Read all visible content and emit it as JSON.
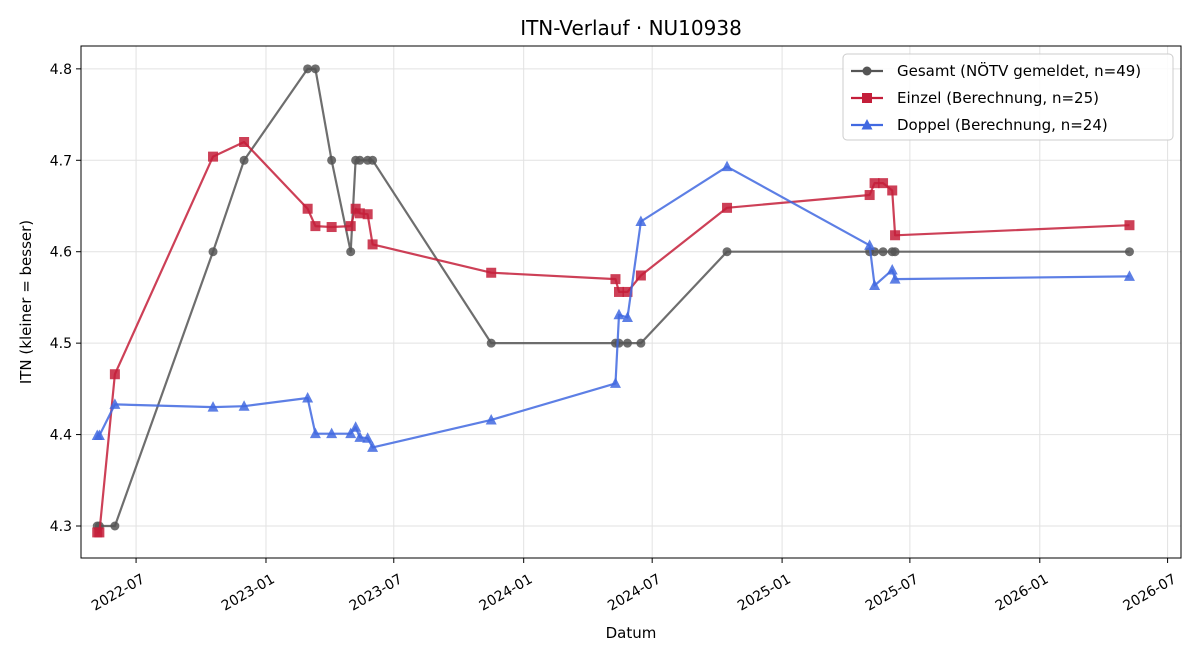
{
  "chart_data": {
    "type": "line",
    "title": "ITN-Verlauf · NU10938",
    "xlabel": "Datum",
    "ylabel": "ITN  (kleiner = besser)",
    "x_type": "date",
    "xlim": [
      "2022-04-14",
      "2026-07-20"
    ],
    "ylim": [
      4.265,
      4.825
    ],
    "x_ticks": [
      "2022-07-01",
      "2023-01-01",
      "2023-07-01",
      "2024-01-01",
      "2024-07-01",
      "2025-01-01",
      "2025-07-01",
      "2026-01-01",
      "2026-07-01"
    ],
    "x_tick_labels": [
      "2022-07",
      "2023-01",
      "2023-07",
      "2024-01",
      "2024-07",
      "2025-01",
      "2025-07",
      "2026-01",
      "2026-07"
    ],
    "y_ticks": [
      4.3,
      4.4,
      4.5,
      4.6,
      4.7,
      4.8
    ],
    "y_tick_labels": [
      "4.3",
      "4.4",
      "4.5",
      "4.6",
      "4.7",
      "4.8"
    ],
    "grid": true,
    "legend_position": "top-right",
    "series": [
      {
        "name": "Gesamt (NÖTV gemeldet, n=49)",
        "color": "#555555",
        "marker": "circle",
        "points": [
          [
            "2022-05-07",
            4.3
          ],
          [
            "2022-05-10",
            4.3
          ],
          [
            "2022-06-01",
            4.3
          ],
          [
            "2022-10-18",
            4.6
          ],
          [
            "2022-12-01",
            4.7
          ],
          [
            "2023-03-01",
            4.8
          ],
          [
            "2023-03-12",
            4.8
          ],
          [
            "2023-04-04",
            4.7
          ],
          [
            "2023-05-01",
            4.6
          ],
          [
            "2023-05-08",
            4.7
          ],
          [
            "2023-05-14",
            4.7
          ],
          [
            "2023-05-25",
            4.7
          ],
          [
            "2023-06-01",
            4.7
          ],
          [
            "2023-11-16",
            4.5
          ],
          [
            "2024-05-10",
            4.5
          ],
          [
            "2024-05-15",
            4.5
          ],
          [
            "2024-05-27",
            4.5
          ],
          [
            "2024-06-15",
            4.5
          ],
          [
            "2024-10-15",
            4.6
          ],
          [
            "2025-05-05",
            4.6
          ],
          [
            "2025-05-12",
            4.6
          ],
          [
            "2025-05-24",
            4.6
          ],
          [
            "2025-06-06",
            4.6
          ],
          [
            "2025-06-10",
            4.6
          ],
          [
            "2026-05-08",
            4.6
          ]
        ]
      },
      {
        "name": "Einzel (Berechnung, n=25)",
        "color": "#c41e3a",
        "marker": "square",
        "points": [
          [
            "2022-05-07",
            4.293
          ],
          [
            "2022-05-10",
            4.293
          ],
          [
            "2022-06-01",
            4.466
          ],
          [
            "2022-10-18",
            4.704
          ],
          [
            "2022-12-01",
            4.72
          ],
          [
            "2023-03-01",
            4.647
          ],
          [
            "2023-03-12",
            4.628
          ],
          [
            "2023-04-04",
            4.627
          ],
          [
            "2023-05-01",
            4.628
          ],
          [
            "2023-05-08",
            4.647
          ],
          [
            "2023-05-14",
            4.642
          ],
          [
            "2023-05-25",
            4.641
          ],
          [
            "2023-06-01",
            4.608
          ],
          [
            "2023-11-16",
            4.577
          ],
          [
            "2024-05-10",
            4.57
          ],
          [
            "2024-05-15",
            4.556
          ],
          [
            "2024-05-27",
            4.556
          ],
          [
            "2024-06-15",
            4.574
          ],
          [
            "2024-10-15",
            4.648
          ],
          [
            "2025-05-05",
            4.662
          ],
          [
            "2025-05-12",
            4.675
          ],
          [
            "2025-05-24",
            4.675
          ],
          [
            "2025-06-06",
            4.667
          ],
          [
            "2025-06-10",
            4.618
          ],
          [
            "2026-05-08",
            4.629
          ]
        ]
      },
      {
        "name": "Doppel (Berechnung, n=24)",
        "color": "#4169e1",
        "marker": "triangle",
        "points": [
          [
            "2022-05-07",
            4.399
          ],
          [
            "2022-05-10",
            4.399
          ],
          [
            "2022-06-01",
            4.433
          ],
          [
            "2022-10-18",
            4.43
          ],
          [
            "2022-12-01",
            4.431
          ],
          [
            "2023-03-01",
            4.44
          ],
          [
            "2023-03-12",
            4.401
          ],
          [
            "2023-04-04",
            4.401
          ],
          [
            "2023-05-01",
            4.401
          ],
          [
            "2023-05-08",
            4.408
          ],
          [
            "2023-05-14",
            4.397
          ],
          [
            "2023-05-25",
            4.396
          ],
          [
            "2023-06-01",
            4.386
          ],
          [
            "2023-11-16",
            4.416
          ],
          [
            "2024-05-10",
            4.456
          ],
          [
            "2024-05-15",
            4.531
          ],
          [
            "2024-05-27",
            4.528
          ],
          [
            "2024-06-15",
            4.633
          ],
          [
            "2024-10-15",
            4.693
          ],
          [
            "2025-05-05",
            4.607
          ],
          [
            "2025-05-12",
            4.563
          ],
          [
            "2025-06-06",
            4.58
          ],
          [
            "2025-06-10",
            4.57
          ],
          [
            "2026-05-08",
            4.573
          ]
        ]
      }
    ]
  }
}
